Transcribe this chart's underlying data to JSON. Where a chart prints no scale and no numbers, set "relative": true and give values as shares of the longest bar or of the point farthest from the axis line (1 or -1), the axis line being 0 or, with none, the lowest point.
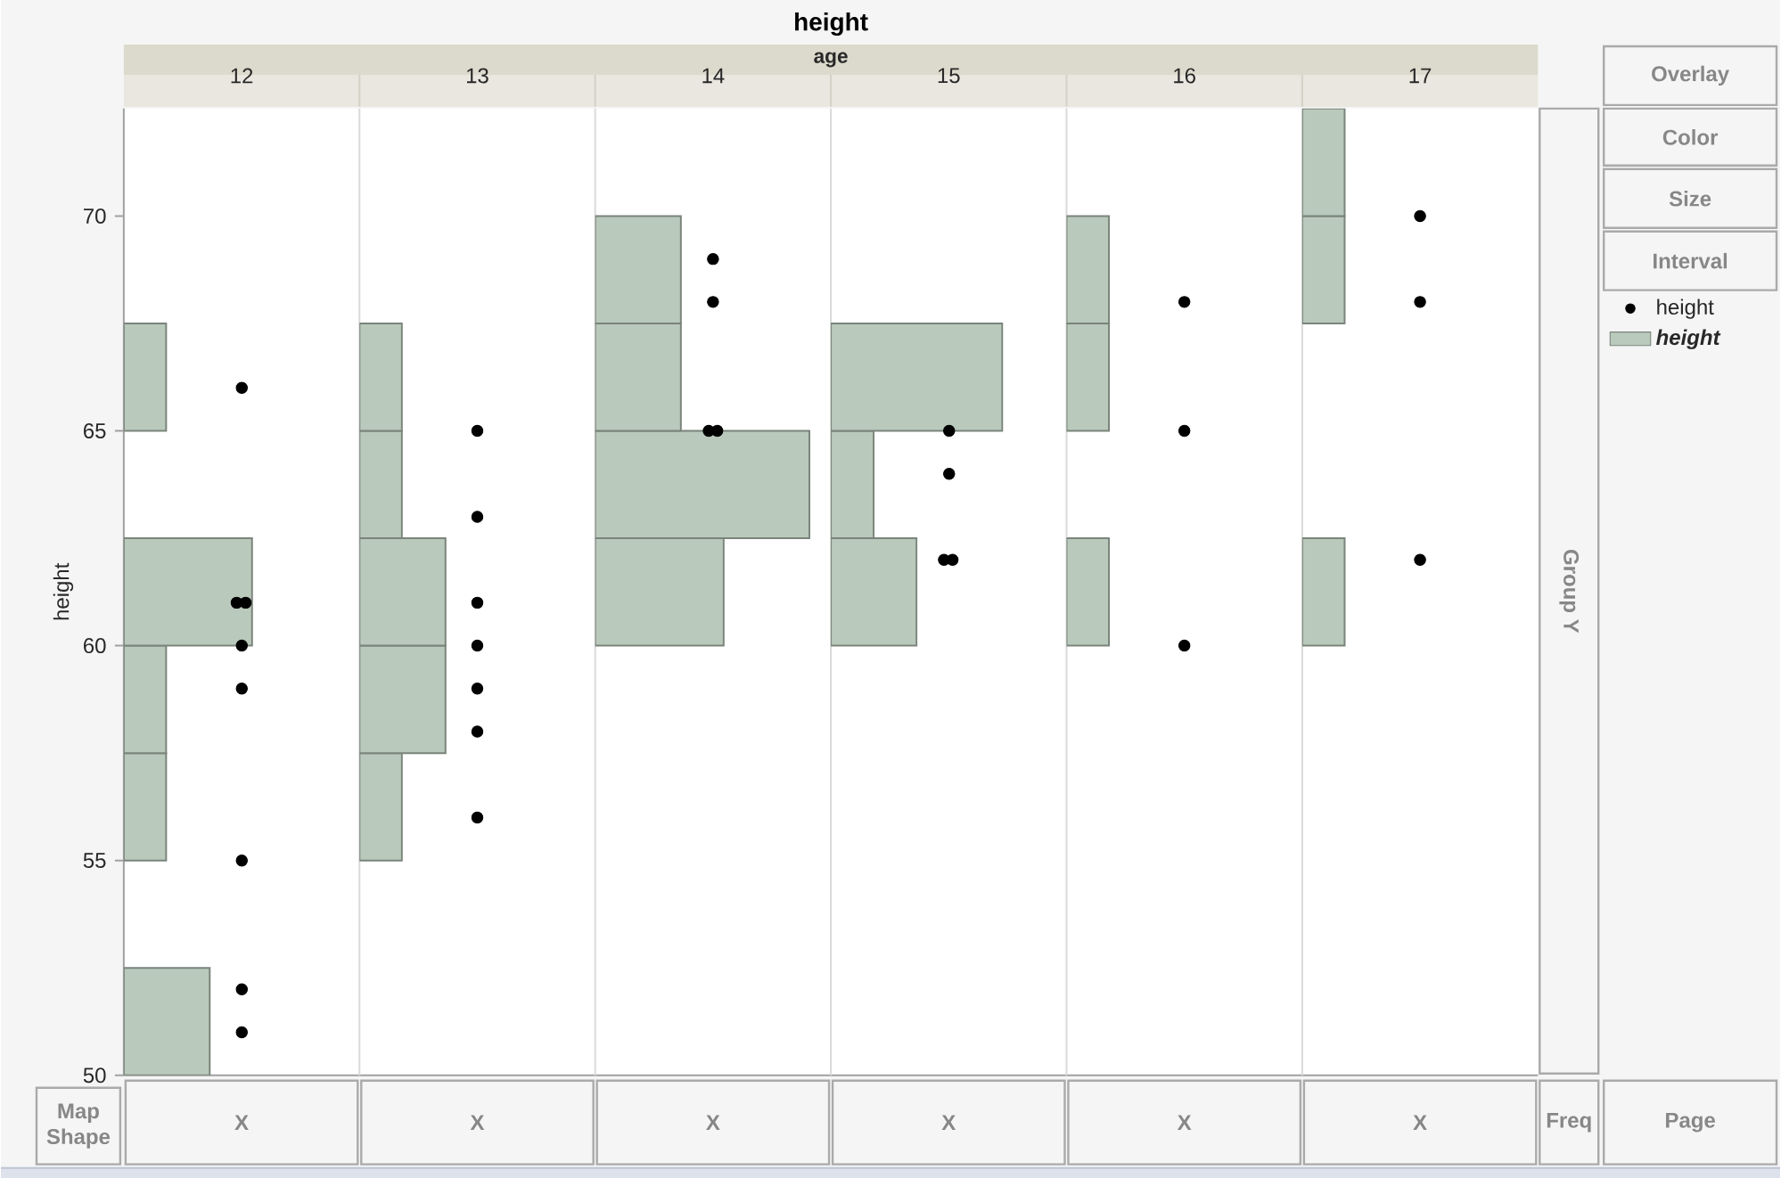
{
  "chart_data": [
    {
      "type": "other",
      "title": "height",
      "subtitle": "age"
    },
    {
      "type": "bar",
      "title": "12",
      "orientation": "horizontal",
      "relative": true,
      "ylim": [
        50,
        72.5
      ],
      "yticks": [
        50,
        55,
        60,
        65,
        70
      ],
      "ylabel": "height",
      "tick_labels": "y",
      "series": [
        {
          "type": "scatter",
          "color": "#000000",
          "marker": "circle",
          "x": [
            66,
            61,
            61,
            60,
            59,
            55,
            52,
            51
          ],
          "values": [
            0.92,
            0.88,
            0.95,
            0.92,
            0.92,
            0.92,
            0.92,
            0.92
          ]
        },
        {
          "type": "bar",
          "color": "#b9c9bb",
          "x": [
            51.25,
            56.25,
            58.75,
            61.25,
            66.25
          ],
          "values": [
            0.67,
            0.33,
            0.33,
            1,
            0.33
          ]
        }
      ]
    },
    {
      "type": "bar",
      "title": "13",
      "orientation": "horizontal",
      "relative": true,
      "ylim": [
        50,
        72.5
      ],
      "tick_labels": false,
      "series": [
        {
          "type": "scatter",
          "color": "#000000",
          "marker": "circle",
          "x": [
            65,
            63,
            61,
            60,
            59,
            58,
            56
          ],
          "values": [
            1,
            1,
            1,
            1,
            1,
            1,
            1
          ]
        },
        {
          "type": "bar",
          "color": "#b9c9bb",
          "x": [
            56.25,
            58.75,
            61.25,
            63.75,
            66.25
          ],
          "values": [
            0.36,
            0.73,
            0.73,
            0.36,
            0.36
          ]
        }
      ]
    },
    {
      "type": "bar",
      "title": "14",
      "orientation": "horizontal",
      "relative": true,
      "ylim": [
        50,
        72.5
      ],
      "tick_labels": false,
      "series": [
        {
          "type": "scatter",
          "color": "#000000",
          "marker": "circle",
          "x": [
            69,
            68,
            65,
            65
          ],
          "values": [
            0.55,
            0.55,
            0.53,
            0.57
          ]
        },
        {
          "type": "bar",
          "color": "#b9c9bb",
          "x": [
            61.25,
            63.75,
            66.25,
            68.75
          ],
          "values": [
            0.6,
            1,
            0.4,
            0.4
          ]
        }
      ]
    },
    {
      "type": "bar",
      "title": "15",
      "orientation": "horizontal",
      "relative": true,
      "ylim": [
        50,
        72.5
      ],
      "tick_labels": false,
      "series": [
        {
          "type": "scatter",
          "color": "#000000",
          "marker": "circle",
          "x": [
            65,
            64,
            62,
            62
          ],
          "values": [
            0.69,
            0.69,
            0.66,
            0.71
          ]
        },
        {
          "type": "bar",
          "color": "#b9c9bb",
          "x": [
            61.25,
            63.75,
            66.25
          ],
          "values": [
            0.5,
            0.25,
            1
          ]
        }
      ]
    },
    {
      "type": "bar",
      "title": "16",
      "orientation": "horizontal",
      "relative": true,
      "ylim": [
        50,
        72.5
      ],
      "tick_labels": false,
      "series": [
        {
          "type": "scatter",
          "color": "#000000",
          "marker": "circle",
          "x": [
            68,
            65,
            60
          ],
          "values": [
            1,
            1,
            1
          ]
        },
        {
          "type": "bar",
          "color": "#b9c9bb",
          "x": [
            61.25,
            66.25,
            68.75
          ],
          "values": [
            0.36,
            0.36,
            0.36
          ]
        }
      ]
    },
    {
      "type": "bar",
      "title": "17",
      "orientation": "horizontal",
      "relative": true,
      "ylim": [
        50,
        72.5
      ],
      "tick_labels": false,
      "legend": "right",
      "series": [
        {
          "type": "scatter",
          "name": "height",
          "color": "#000000",
          "marker": "circle",
          "x": [
            70,
            68,
            62
          ],
          "values": [
            1,
            1,
            1
          ]
        },
        {
          "type": "bar",
          "name": "height",
          "color": "#b9c9bb",
          "x": [
            61.25,
            68.75,
            71.25
          ],
          "values": [
            0.36,
            0.36,
            0.36
          ]
        }
      ]
    },
    {
      "type": "other",
      "annotations": [
        "Overlay",
        "Color",
        "Size",
        "Interval"
      ]
    },
    {
      "type": "other",
      "annotations": [
        "Group Y"
      ]
    },
    {
      "type": "other",
      "annotations": [
        "Map Shape",
        "X",
        "X",
        "X",
        "X",
        "X",
        "X",
        "Freq",
        "Page"
      ]
    }
  ]
}
